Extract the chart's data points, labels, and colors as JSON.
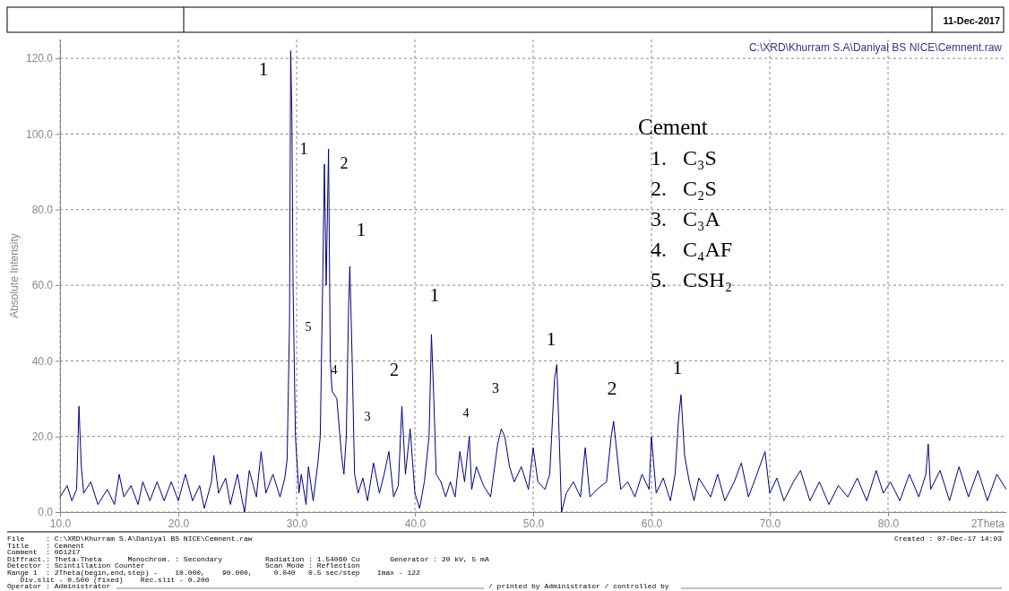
{
  "chart_data": {
    "type": "line",
    "ylabel": "Absolute Intensity",
    "xlabel": "2Theta",
    "grid": true,
    "marker": "none",
    "line_style": "solid",
    "xlim": [
      10,
      90
    ],
    "ylim": [
      0,
      125
    ],
    "xticks": [
      {
        "value": 10,
        "label": "10.0"
      },
      {
        "value": 20,
        "label": "20.0"
      },
      {
        "value": 30,
        "label": "30.0"
      },
      {
        "value": 40,
        "label": "40.0"
      },
      {
        "value": 50,
        "label": "50.0"
      },
      {
        "value": 60,
        "label": "60.0"
      },
      {
        "value": 70,
        "label": "70.0"
      },
      {
        "value": 80,
        "label": "80.0"
      }
    ],
    "yticks": [
      {
        "value": 0,
        "label": "0.0"
      },
      {
        "value": 20,
        "label": "20.0"
      },
      {
        "value": 40,
        "label": "40.0"
      },
      {
        "value": 60,
        "label": "60.0"
      },
      {
        "value": 80,
        "label": "80.0"
      },
      {
        "value": 100,
        "label": "100.0"
      },
      {
        "value": 120,
        "label": "120.0"
      }
    ],
    "series": [
      {
        "color": "#000080",
        "x": [
          10.0,
          10.6,
          11.0,
          11.4,
          11.6,
          11.8,
          12.0,
          12.6,
          13.2,
          14.0,
          14.6,
          15.0,
          15.4,
          16.0,
          16.6,
          17.0,
          17.6,
          18.2,
          18.8,
          19.4,
          20.0,
          20.6,
          21.2,
          21.8,
          22.2,
          22.8,
          23.0,
          23.4,
          24.0,
          24.4,
          25.0,
          25.4,
          25.6,
          26.0,
          26.6,
          27.0,
          27.4,
          28.0,
          28.6,
          29.0,
          29.2,
          29.4,
          29.5,
          29.6,
          29.7,
          29.9,
          30.2,
          30.4,
          30.8,
          31.0,
          31.4,
          31.8,
          32.0,
          32.2,
          32.35,
          32.5,
          32.7,
          32.85,
          33.0,
          33.4,
          33.8,
          34.0,
          34.2,
          34.4,
          34.5,
          34.7,
          34.9,
          35.2,
          35.6,
          36.0,
          36.5,
          37.0,
          37.4,
          37.8,
          38.2,
          38.6,
          38.9,
          39.2,
          39.6,
          40.0,
          40.4,
          40.8,
          41.2,
          41.4,
          41.6,
          41.8,
          42.2,
          42.6,
          43.0,
          43.4,
          43.8,
          44.2,
          44.6,
          44.8,
          45.2,
          45.8,
          46.4,
          47.0,
          47.3,
          47.6,
          48.0,
          48.4,
          49.0,
          49.6,
          50.0,
          50.4,
          51.0,
          51.4,
          51.8,
          52.0,
          52.2,
          52.4,
          52.8,
          53.4,
          54.0,
          54.4,
          54.8,
          55.4,
          56.2,
          56.6,
          56.8,
          57.0,
          57.4,
          58.0,
          58.6,
          59.2,
          59.8,
          60.0,
          60.4,
          61.0,
          61.6,
          62.0,
          62.3,
          62.5,
          62.8,
          63.2,
          63.6,
          64.0,
          65.0,
          65.6,
          66.2,
          67.0,
          67.6,
          68.2,
          68.8,
          69.6,
          70.0,
          70.6,
          71.2,
          72.0,
          72.6,
          73.4,
          74.2,
          75.0,
          75.8,
          76.6,
          77.4,
          78.2,
          79.0,
          79.6,
          80.2,
          81.0,
          81.8,
          82.6,
          83.2,
          83.4,
          83.6,
          84.4,
          85.2,
          86.0,
          86.8,
          87.6,
          88.4,
          89.2,
          90.0
        ],
        "values": [
          4,
          7,
          3,
          6,
          28,
          12,
          5,
          8,
          2,
          6,
          2,
          10,
          4,
          7,
          2,
          8,
          3,
          8,
          3,
          8,
          3,
          10,
          3,
          7,
          1,
          8,
          15,
          5,
          9,
          2,
          10,
          3,
          0,
          11,
          4,
          16,
          5,
          10,
          4,
          9,
          14,
          50,
          122,
          105,
          60,
          20,
          5,
          10,
          2,
          12,
          3,
          13,
          20,
          60,
          92,
          60,
          96,
          40,
          32,
          30,
          15,
          10,
          20,
          55,
          65,
          40,
          10,
          5,
          9,
          3,
          13,
          5,
          10,
          16,
          4,
          7,
          28,
          10,
          22,
          5,
          1,
          8,
          20,
          47,
          30,
          10,
          8,
          4,
          8,
          4,
          16,
          8,
          20,
          6,
          12,
          7,
          4,
          18,
          22,
          20,
          12,
          8,
          12,
          6,
          17,
          8,
          6,
          10,
          35,
          39,
          20,
          0,
          5,
          8,
          4,
          17,
          4,
          6,
          8,
          20,
          24,
          18,
          6,
          8,
          4,
          10,
          6,
          20,
          5,
          9,
          3,
          10,
          25,
          31,
          15,
          8,
          3,
          9,
          4,
          10,
          3,
          8,
          13,
          4,
          9,
          16,
          5,
          9,
          3,
          8,
          11,
          3,
          8,
          2,
          7,
          4,
          9,
          3,
          11,
          5,
          8,
          3,
          10,
          4,
          10,
          18,
          6,
          11,
          3,
          12,
          4,
          11,
          3,
          10,
          6
        ]
      }
    ],
    "annotations": [
      "1",
      "1",
      "2",
      "1",
      "5",
      "4",
      "2",
      "3",
      "1",
      "4",
      "3",
      "1",
      "2",
      "1",
      "C:\\XRD\\Khurram S.A\\Daniyal BS NICE\\Cemnent.raw",
      "Cement",
      "1.   C₃S",
      "2.   C₂S",
      "3.   C₃A",
      "4.   C₄AF",
      "5.   CSH₂",
      "11-Dec-2017",
      "File     : C:\\XRD\\Khurram S.A\\Daniyal BS NICE\\Cemnent.raw",
      "Title    : Cemnent",
      "Comment  : 061217",
      "Diffract.: Theta-Theta      Monochrom. : Secondary          Radiation : 1.54060 Cu       Generator : 20 kV, 5 mA",
      "Detector : Scintillation Counter                            Scan Mode : Reflection",
      "Range 1  : 2Theta(begin,end,step) -    10.000,    90.000,     0.040   0.5 sec/step    Imax - 122",
      "   Div.slit - 0.500 (fixed)    Rec.slit - 0.200",
      "Operator : Administrator",
      "/ printed by Administrator / controlled by",
      "Created : 07-Dec-17 14:03"
    ]
  }
}
